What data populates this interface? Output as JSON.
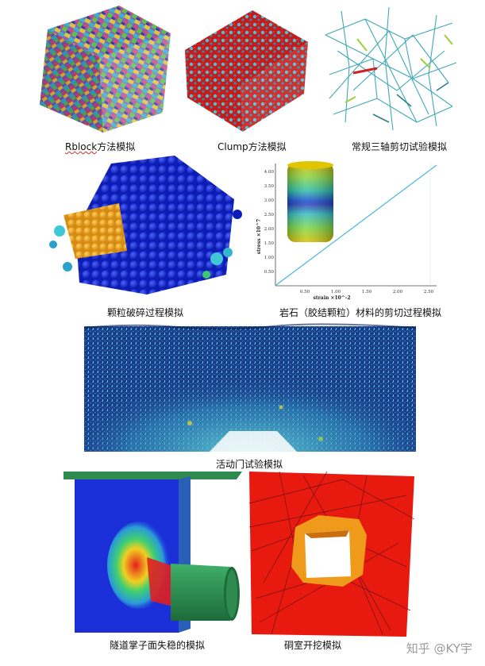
{
  "captions": {
    "rblock_prefix": "Rblock",
    "rblock_suffix": "方法模拟",
    "clump": "Clump方法模拟",
    "triaxial": "常规三轴剪切试验模拟",
    "particle_crush": "颗粒破碎过程模拟",
    "rock_shear": "岩石（胶结颗粒）材料的剪切过程模拟",
    "trapdoor": "活动门试验模拟",
    "tunnel_face": "隧道掌子面失稳的模拟",
    "cavern": "硐室开挖模拟"
  },
  "stress_plot": {
    "ylabel": "stress ×10^7",
    "xlabel": "strain ×10^-2",
    "y_ticks": [
      "4.00",
      "3.50",
      "3.00",
      "2.50",
      "2.00",
      "1.50",
      "1.00",
      "0.50"
    ],
    "x_ticks": [
      "0.50",
      "1.00",
      "1.50",
      "2.00",
      "2.50"
    ]
  },
  "watermark": "知乎 @KY宇",
  "colors": {
    "deep_blue": "#1a2fd8",
    "red": "#e01818",
    "cyan": "#3fc7d8",
    "green_pipe": "#2f9a55",
    "orange": "#f0a21c"
  }
}
